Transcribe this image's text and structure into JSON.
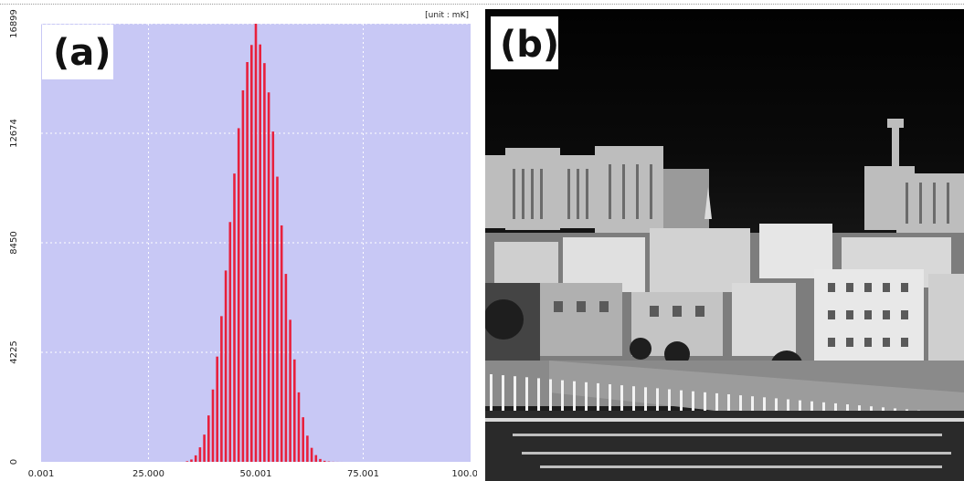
{
  "chart_data": {
    "type": "bar",
    "panel_label": "(a)",
    "unit_label": "[unit : mK]",
    "xlim": [
      0.001,
      100.001
    ],
    "ylim": [
      0,
      16899
    ],
    "x_tick_labels": [
      "0.001",
      "25.000",
      "50.001",
      "75.001",
      "100.001"
    ],
    "x_tick_values": [
      0.001,
      25.0,
      50.001,
      75.001,
      100.001
    ],
    "y_tick_labels": [
      "16899",
      "12674",
      "8450",
      "4225",
      "0"
    ],
    "y_tick_values": [
      16899,
      12674,
      8450,
      4225,
      0
    ],
    "grid": true,
    "colors": {
      "plot_bg": "#c8c8f5",
      "bar": "#e8203c",
      "grid": "#ffffff"
    },
    "x": [
      34,
      35,
      36,
      37,
      38,
      39,
      40,
      41,
      42,
      43,
      44,
      45,
      46,
      47,
      48,
      49,
      50,
      51,
      52,
      53,
      54,
      55,
      56,
      57,
      58,
      59,
      60,
      61,
      62,
      63,
      64,
      65,
      66,
      67,
      68,
      69,
      70,
      71,
      72
    ],
    "values": [
      25,
      90,
      250,
      560,
      1050,
      1790,
      2790,
      4060,
      5620,
      7380,
      9250,
      11120,
      12870,
      14330,
      15420,
      16080,
      16899,
      16100,
      15380,
      14250,
      12740,
      11000,
      9120,
      7250,
      5480,
      3950,
      2680,
      1720,
      1010,
      540,
      260,
      110,
      40,
      15,
      5,
      2,
      1,
      0,
      0
    ]
  },
  "photo": {
    "panel_label": "(b)"
  }
}
